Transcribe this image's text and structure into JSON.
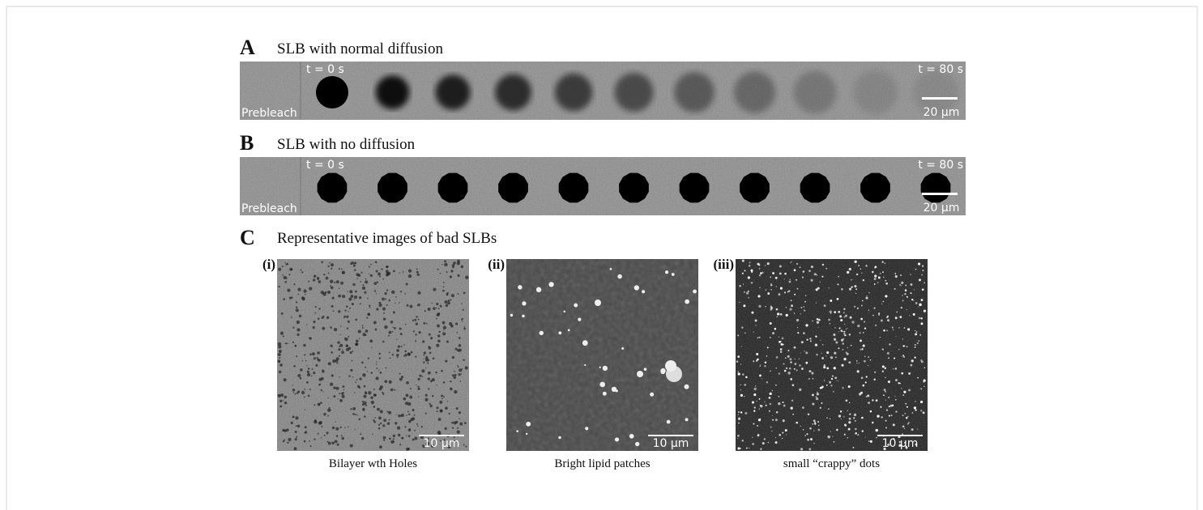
{
  "panels": [
    {
      "letter": "A",
      "title": "SLB with normal diffusion",
      "start_label": "t = 0 s",
      "end_label": "t = 80 s",
      "prebleach": "Prebleach",
      "scale": "20 µm"
    },
    {
      "letter": "B",
      "title": "SLB with no diffusion",
      "start_label": "t = 0 s",
      "end_label": "t = 80 s",
      "prebleach": "Prebleach",
      "scale": "20 µm"
    }
  ],
  "panel_c": {
    "letter": "C",
    "title": "Representative images of bad SLBs",
    "images": [
      {
        "label": "(i)",
        "scale": "10 µm",
        "caption": "Bilayer wth Holes"
      },
      {
        "label": "(ii)",
        "scale": "10 µm",
        "caption": "Bright lipid patches"
      },
      {
        "label": "(iii)",
        "scale": "10 µm",
        "caption": "small “crappy” dots"
      }
    ]
  }
}
